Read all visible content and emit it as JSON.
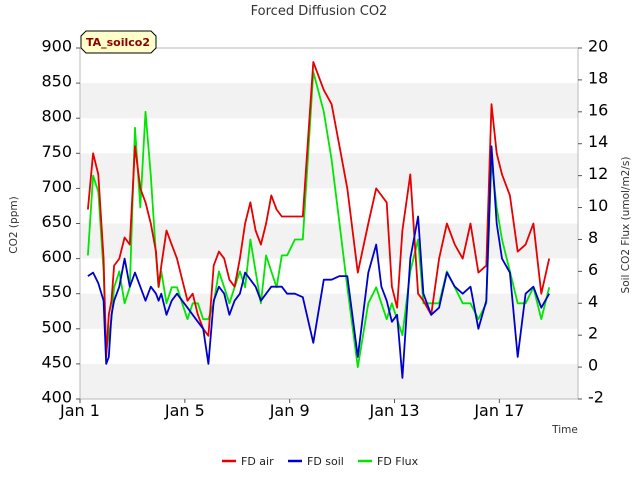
{
  "chart_data": {
    "type": "line",
    "title": "Forced Diffusion CO2",
    "xlabel": "Time",
    "ylabel_left": "CO2 (ppm)",
    "ylabel_right": "Soil CO2 Flux (umol/m2/s)",
    "badge": "TA_soilco2",
    "x_range_days": [
      0,
      19
    ],
    "x_ticks": [
      "Jan 1",
      "Jan 5",
      "Jan 9",
      "Jan 13",
      "Jan 17"
    ],
    "x_tick_days": [
      0,
      4,
      8,
      12,
      16
    ],
    "ylim_left": [
      400,
      900
    ],
    "yticks_left": [
      "400",
      "450",
      "500",
      "550",
      "600",
      "650",
      "700",
      "750",
      "800",
      "850",
      "900"
    ],
    "ylim_right": [
      -2,
      20
    ],
    "yticks_right": [
      "-2",
      "0",
      "2",
      "4",
      "6",
      "8",
      "10",
      "12",
      "14",
      "16",
      "18",
      "20"
    ],
    "grid": "horizontal-bands",
    "legend_position": "bottom-center",
    "series": [
      {
        "name": "FD air",
        "color": "#e60000",
        "axis": "left",
        "x": [
          0.3,
          0.5,
          0.7,
          0.9,
          1.0,
          1.1,
          1.2,
          1.3,
          1.5,
          1.7,
          1.9,
          2.1,
          2.3,
          2.5,
          2.7,
          2.9,
          3.0,
          3.1,
          3.3,
          3.5,
          3.7,
          3.9,
          4.1,
          4.3,
          4.5,
          4.7,
          4.9,
          5.1,
          5.3,
          5.5,
          5.7,
          5.9,
          6.1,
          6.3,
          6.5,
          6.7,
          6.9,
          7.1,
          7.3,
          7.5,
          7.7,
          7.9,
          8.2,
          8.5,
          8.9,
          9.3,
          9.6,
          9.9,
          10.2,
          10.6,
          11.0,
          11.3,
          11.5,
          11.7,
          11.9,
          12.1,
          12.3,
          12.6,
          12.9,
          13.1,
          13.4,
          13.7,
          14.0,
          14.3,
          14.6,
          14.9,
          15.2,
          15.5,
          15.7,
          15.9,
          16.1,
          16.4,
          16.7,
          17.0,
          17.3,
          17.6,
          17.9
        ],
        "y": [
          670,
          750,
          720,
          600,
          460,
          520,
          540,
          590,
          600,
          630,
          620,
          760,
          700,
          680,
          650,
          610,
          560,
          590,
          640,
          620,
          600,
          570,
          540,
          550,
          520,
          500,
          490,
          590,
          610,
          600,
          570,
          560,
          600,
          650,
          680,
          640,
          620,
          650,
          690,
          670,
          660,
          660,
          660,
          660,
          880,
          840,
          820,
          760,
          700,
          580,
          650,
          700,
          690,
          680,
          560,
          530,
          640,
          720,
          550,
          540,
          520,
          600,
          650,
          620,
          600,
          650,
          580,
          590,
          820,
          750,
          720,
          690,
          610,
          620,
          650,
          550,
          600
        ],
        "gaps_after": [
          43,
          47
        ]
      },
      {
        "name": "FD soil",
        "color": "#0000cc",
        "axis": "left",
        "x": [
          0.3,
          0.5,
          0.7,
          0.9,
          1.0,
          1.1,
          1.2,
          1.3,
          1.5,
          1.7,
          1.9,
          2.1,
          2.3,
          2.5,
          2.7,
          2.9,
          3.0,
          3.1,
          3.3,
          3.5,
          3.7,
          3.9,
          4.1,
          4.3,
          4.5,
          4.7,
          4.9,
          5.1,
          5.3,
          5.5,
          5.7,
          5.9,
          6.1,
          6.3,
          6.5,
          6.7,
          6.9,
          7.1,
          7.3,
          7.5,
          7.7,
          7.9,
          8.2,
          8.5,
          8.9,
          9.3,
          9.6,
          9.9,
          10.2,
          10.6,
          11.0,
          11.3,
          11.5,
          11.7,
          11.9,
          12.1,
          12.3,
          12.6,
          12.9,
          13.1,
          13.4,
          13.7,
          14.0,
          14.3,
          14.6,
          14.9,
          15.2,
          15.5,
          15.7,
          15.9,
          16.1,
          16.4,
          16.7,
          17.0,
          17.3,
          17.6,
          17.9
        ],
        "y": [
          575,
          580,
          565,
          540,
          450,
          460,
          520,
          540,
          560,
          600,
          560,
          580,
          560,
          540,
          560,
          550,
          540,
          550,
          520,
          540,
          550,
          540,
          530,
          520,
          510,
          500,
          450,
          540,
          560,
          550,
          520,
          540,
          550,
          580,
          570,
          560,
          540,
          550,
          560,
          560,
          560,
          550,
          550,
          545,
          480,
          570,
          570,
          575,
          575,
          460,
          580,
          620,
          560,
          540,
          510,
          520,
          430,
          600,
          660,
          550,
          520,
          530,
          580,
          560,
          550,
          560,
          500,
          540,
          760,
          650,
          600,
          580,
          460,
          550,
          560,
          530,
          550
        ],
        "gaps_after": [
          43,
          47
        ]
      },
      {
        "name": "FD Flux",
        "color": "#00e600",
        "axis": "right",
        "x": [
          0.3,
          0.5,
          0.7,
          0.9,
          1.0,
          1.1,
          1.2,
          1.3,
          1.5,
          1.7,
          1.9,
          2.1,
          2.3,
          2.5,
          2.7,
          2.9,
          3.0,
          3.1,
          3.3,
          3.5,
          3.7,
          3.9,
          4.1,
          4.3,
          4.5,
          4.7,
          4.9,
          5.1,
          5.3,
          5.5,
          5.7,
          5.9,
          6.1,
          6.3,
          6.5,
          6.7,
          6.9,
          7.1,
          7.3,
          7.5,
          7.7,
          7.9,
          8.2,
          8.5,
          8.9,
          9.3,
          9.6,
          9.9,
          10.2,
          10.6,
          11.0,
          11.3,
          11.5,
          11.7,
          11.9,
          12.1,
          12.3,
          12.6,
          12.9,
          13.1,
          13.4,
          13.7,
          14.0,
          14.3,
          14.6,
          14.9,
          15.2,
          15.5,
          15.7,
          15.9,
          16.1,
          16.4,
          16.7,
          17.0,
          17.3,
          17.6,
          17.9
        ],
        "y": [
          7,
          12,
          11,
          6,
          1,
          2,
          3,
          5,
          6,
          4,
          5,
          15,
          10,
          16,
          12,
          7,
          5,
          6,
          4,
          5,
          5,
          4,
          3,
          4,
          4,
          3,
          3,
          4,
          6,
          5,
          4,
          5,
          6,
          5,
          8,
          6,
          4,
          7,
          6,
          5,
          7,
          7,
          8,
          8,
          18.5,
          16,
          13,
          9,
          5,
          0,
          4,
          5,
          4,
          3,
          4,
          3,
          2,
          6,
          8,
          4,
          4,
          4,
          6,
          5,
          4,
          4,
          3,
          4,
          13,
          10,
          8,
          6,
          4,
          4,
          5,
          3,
          5
        ],
        "gaps_after": [
          43
        ]
      }
    ]
  }
}
